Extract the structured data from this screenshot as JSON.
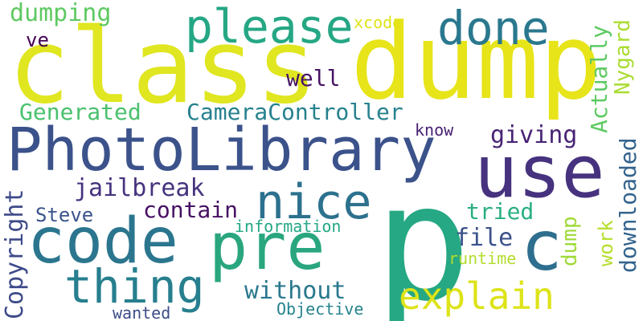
{
  "words": [
    {
      "text": "p",
      "color": "#25a883"
    },
    {
      "text": "class",
      "color": "#e0e620"
    },
    {
      "text": "dump",
      "color": "#e7e419"
    },
    {
      "text": "PhotoLibrary",
      "color": "#3b528b"
    },
    {
      "text": "use",
      "color": "#46327e"
    },
    {
      "text": "code",
      "color": "#2b768e"
    },
    {
      "text": "pre",
      "color": "#2aa67f"
    },
    {
      "text": "c",
      "color": "#2e6e8e"
    },
    {
      "text": "nice",
      "color": "#2c718e"
    },
    {
      "text": "thing",
      "color": "#277f8e"
    },
    {
      "text": "please",
      "color": "#25a784"
    },
    {
      "text": "done",
      "color": "#2a788e"
    },
    {
      "text": "explain",
      "color": "#dde318"
    },
    {
      "text": "Copyright",
      "color": "#3e4a89"
    },
    {
      "text": "Actually",
      "color": "#5ec962"
    },
    {
      "text": "Nygard",
      "color": "#aadc32"
    },
    {
      "text": "downloaded",
      "color": "#33638d"
    },
    {
      "text": "dumping",
      "color": "#5ec962"
    },
    {
      "text": "Generated",
      "color": "#4ac16d"
    },
    {
      "text": "CameraController",
      "color": "#26818e"
    },
    {
      "text": "giving",
      "color": "#482475"
    },
    {
      "text": "jailbreak",
      "color": "#46337e"
    },
    {
      "text": "contain",
      "color": "#471063"
    },
    {
      "text": "Steve",
      "color": "#3a548c"
    },
    {
      "text": "tried",
      "color": "#29af7f"
    },
    {
      "text": "file",
      "color": "#3b518b"
    },
    {
      "text": "work",
      "color": "#b5de2b"
    },
    {
      "text": "dump",
      "color": "#a0da39"
    },
    {
      "text": "without",
      "color": "#2a788e"
    },
    {
      "text": "well",
      "color": "#471365"
    },
    {
      "text": "ve",
      "color": "#440154"
    },
    {
      "text": "know",
      "color": "#482173"
    },
    {
      "text": "xcode",
      "color": "#dfe318"
    },
    {
      "text": "information",
      "color": "#22a785"
    },
    {
      "text": "runtime",
      "color": "#b2dd2d"
    },
    {
      "text": "Objective",
      "color": "#25838e"
    },
    {
      "text": "wanted",
      "color": "#3d4d8a"
    }
  ]
}
